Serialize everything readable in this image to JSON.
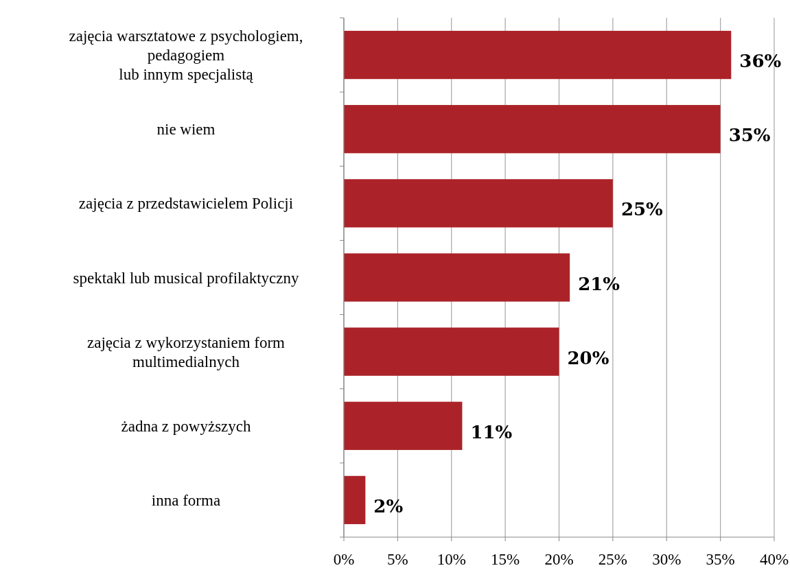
{
  "chart_data": {
    "type": "bar",
    "orientation": "horizontal",
    "categories": [
      "zajęcia warsztatowe z psychologiem,\npedagogiem\nlub innym specjalistą",
      "nie wiem",
      "zajęcia z przedstawicielem Policji",
      "spektakl lub musical profilaktyczny",
      "zajęcia z wykorzystaniem form\nmultimedialnych",
      "żadna z powyższych",
      "inna forma"
    ],
    "values": [
      36,
      35,
      25,
      21,
      20,
      11,
      2
    ],
    "value_labels": [
      "36%",
      "35%",
      "25%",
      "21%",
      "20%",
      "11%",
      "2%"
    ],
    "color": "#ab2328",
    "xlim": [
      0,
      40
    ],
    "xticks": [
      {
        "value": 0,
        "label": "0%"
      },
      {
        "value": 5,
        "label": "5%"
      },
      {
        "value": 10,
        "label": "10%"
      },
      {
        "value": 15,
        "label": "15%"
      },
      {
        "value": 20,
        "label": "20%"
      },
      {
        "value": 25,
        "label": "25%"
      },
      {
        "value": 30,
        "label": "30%"
      },
      {
        "value": 35,
        "label": "35%"
      },
      {
        "value": 40,
        "label": "40%"
      }
    ],
    "grid": "x"
  }
}
